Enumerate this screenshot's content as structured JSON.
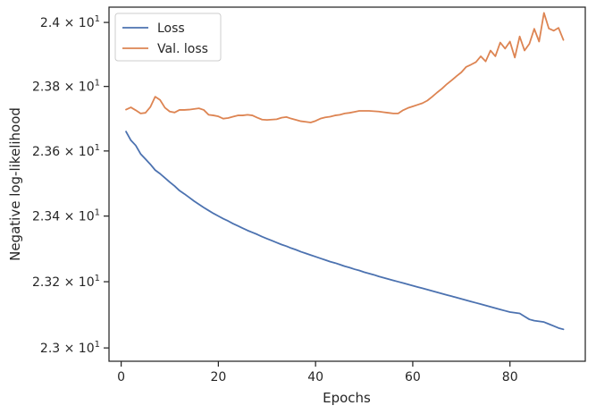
{
  "chart_data": {
    "type": "line",
    "title": "",
    "xlabel": "Epochs",
    "ylabel": "Negative log-likelihood",
    "xlim": [
      -2.5,
      95.5
    ],
    "ylim": [
      22.96,
      24.048
    ],
    "yscale": "log",
    "grid": false,
    "legend_position": "top-left",
    "x_ticks": [
      0,
      20,
      40,
      60,
      80
    ],
    "x_tick_labels": [
      "0",
      "20",
      "40",
      "60",
      "80"
    ],
    "y_ticks": [
      23.0,
      23.2,
      23.4,
      23.6,
      23.8,
      24.0
    ],
    "y_tick_labels": [
      {
        "mant": "2.3",
        "exp": "1"
      },
      {
        "mant": "2.32",
        "exp": "1"
      },
      {
        "mant": "2.34",
        "exp": "1"
      },
      {
        "mant": "2.36",
        "exp": "1"
      },
      {
        "mant": "2.38",
        "exp": "1"
      },
      {
        "mant": "2.4",
        "exp": "1"
      }
    ],
    "series": [
      {
        "name": "Loss",
        "color": "#4c72b0",
        "x": [
          1,
          2,
          3,
          4,
          5,
          6,
          7,
          8,
          9,
          10,
          11,
          12,
          13,
          14,
          15,
          16,
          17,
          18,
          19,
          20,
          21,
          22,
          23,
          24,
          25,
          26,
          27,
          28,
          29,
          30,
          31,
          32,
          33,
          34,
          35,
          36,
          37,
          38,
          39,
          40,
          41,
          42,
          43,
          44,
          45,
          46,
          47,
          48,
          49,
          50,
          51,
          52,
          53,
          54,
          55,
          56,
          57,
          58,
          59,
          60,
          61,
          62,
          63,
          64,
          65,
          66,
          67,
          68,
          69,
          70,
          71,
          72,
          73,
          74,
          75,
          76,
          77,
          78,
          79,
          80,
          81,
          82,
          83,
          84,
          85,
          86,
          87,
          88,
          89,
          90,
          91
        ],
        "y": [
          23.66,
          23.633,
          23.617,
          23.591,
          23.575,
          23.559,
          23.541,
          23.53,
          23.517,
          23.504,
          23.492,
          23.478,
          23.468,
          23.457,
          23.446,
          23.436,
          23.426,
          23.417,
          23.408,
          23.4,
          23.392,
          23.385,
          23.377,
          23.37,
          23.363,
          23.356,
          23.35,
          23.344,
          23.337,
          23.331,
          23.325,
          23.319,
          23.313,
          23.308,
          23.302,
          23.297,
          23.291,
          23.286,
          23.281,
          23.276,
          23.271,
          23.266,
          23.261,
          23.257,
          23.252,
          23.247,
          23.243,
          23.238,
          23.234,
          23.229,
          23.225,
          23.221,
          23.216,
          23.212,
          23.208,
          23.204,
          23.2,
          23.196,
          23.192,
          23.188,
          23.184,
          23.18,
          23.176,
          23.172,
          23.168,
          23.164,
          23.16,
          23.156,
          23.152,
          23.148,
          23.144,
          23.14,
          23.136,
          23.132,
          23.128,
          23.124,
          23.12,
          23.116,
          23.112,
          23.108,
          23.106,
          23.104,
          23.095,
          23.086,
          23.082,
          23.08,
          23.078,
          23.072,
          23.066,
          23.06,
          23.056
        ]
      },
      {
        "name": "Val. loss",
        "color": "#dd8452",
        "x": [
          1,
          2,
          3,
          4,
          5,
          6,
          7,
          8,
          9,
          10,
          11,
          12,
          13,
          14,
          15,
          16,
          17,
          18,
          19,
          20,
          21,
          22,
          23,
          24,
          25,
          26,
          27,
          28,
          29,
          30,
          31,
          32,
          33,
          34,
          35,
          36,
          37,
          38,
          39,
          40,
          41,
          42,
          43,
          44,
          45,
          46,
          47,
          48,
          49,
          50,
          51,
          52,
          53,
          54,
          55,
          56,
          57,
          58,
          59,
          60,
          61,
          62,
          63,
          64,
          65,
          66,
          67,
          68,
          69,
          70,
          71,
          72,
          73,
          74,
          75,
          76,
          77,
          78,
          79,
          80,
          81,
          82,
          83,
          84,
          85,
          86,
          87,
          88,
          89,
          90,
          91
        ],
        "y": [
          23.728,
          23.735,
          23.726,
          23.716,
          23.718,
          23.736,
          23.768,
          23.758,
          23.734,
          23.722,
          23.719,
          23.727,
          23.727,
          23.728,
          23.73,
          23.732,
          23.727,
          23.712,
          23.71,
          23.707,
          23.7,
          23.702,
          23.706,
          23.71,
          23.71,
          23.712,
          23.71,
          23.703,
          23.697,
          23.696,
          23.697,
          23.698,
          23.703,
          23.705,
          23.7,
          23.696,
          23.692,
          23.69,
          23.688,
          23.693,
          23.7,
          23.704,
          23.706,
          23.71,
          23.712,
          23.716,
          23.718,
          23.721,
          23.724,
          23.724,
          23.724,
          23.723,
          23.722,
          23.72,
          23.718,
          23.716,
          23.716,
          23.726,
          23.733,
          23.738,
          23.743,
          23.748,
          23.756,
          23.768,
          23.781,
          23.793,
          23.807,
          23.819,
          23.832,
          23.844,
          23.861,
          23.868,
          23.876,
          23.894,
          23.878,
          23.912,
          23.894,
          23.937,
          23.918,
          23.94,
          23.89,
          23.956,
          23.912,
          23.933,
          23.98,
          23.94,
          24.03,
          23.981,
          23.974,
          23.983,
          23.945
        ]
      }
    ]
  }
}
